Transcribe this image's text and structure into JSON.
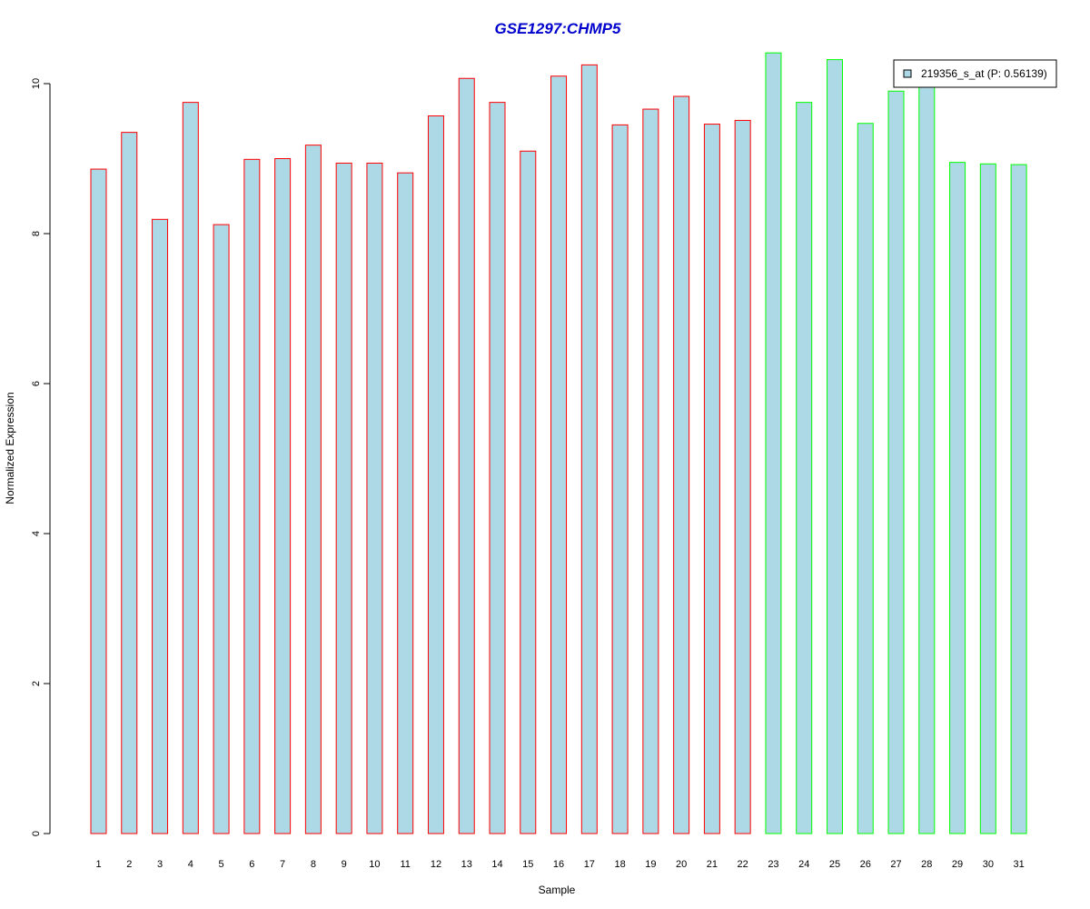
{
  "chart_data": {
    "type": "bar",
    "title": "GSE1297:CHMP5",
    "xlabel": "Sample",
    "ylabel": "Normalized Expression",
    "ylim": [
      0,
      10.4
    ],
    "yticks": [
      0,
      2,
      4,
      6,
      8,
      10
    ],
    "grid": false,
    "legend_position": "top-right",
    "categories": [
      "1",
      "2",
      "3",
      "4",
      "5",
      "6",
      "7",
      "8",
      "9",
      "10",
      "11",
      "12",
      "13",
      "14",
      "15",
      "16",
      "17",
      "18",
      "19",
      "20",
      "21",
      "22",
      "23",
      "24",
      "25",
      "26",
      "27",
      "28",
      "29",
      "30",
      "31"
    ],
    "series": [
      {
        "name": "219356_s_at (P: 0.56139)",
        "values": [
          8.86,
          9.35,
          8.19,
          9.75,
          8.12,
          8.99,
          9.0,
          9.18,
          8.94,
          8.94,
          8.81,
          9.57,
          10.07,
          9.75,
          9.1,
          10.1,
          10.25,
          9.45,
          9.66,
          9.83,
          9.46,
          9.51,
          10.41,
          9.75,
          10.32,
          9.47,
          9.9,
          10.0,
          8.95,
          8.93,
          8.92
        ]
      }
    ],
    "groups": [
      {
        "from": 1,
        "to": 22,
        "border_color": "#ff0000"
      },
      {
        "from": 23,
        "to": 31,
        "border_color": "#00ff00"
      }
    ],
    "colors": {
      "bar_fill": "#add8e6",
      "title": "#0000cd",
      "group1_border": "#ff0000",
      "group2_border": "#00ff00"
    }
  }
}
